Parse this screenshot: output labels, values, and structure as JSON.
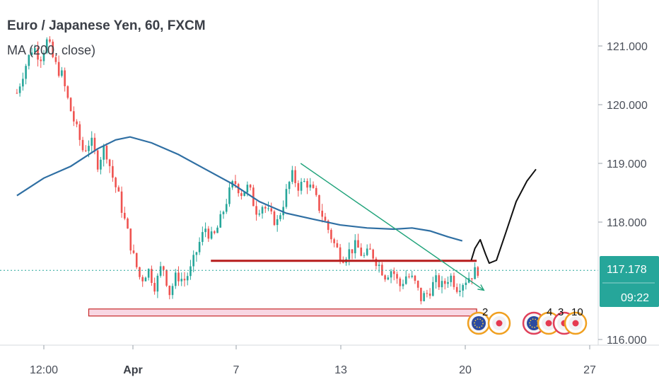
{
  "header": {
    "title": "Euro / Japanese Yen, 60, FXCM",
    "indicator": "MA (200, close)"
  },
  "price_axis": {
    "ticks": [
      "121.000",
      "120.000",
      "119.000",
      "118.000",
      "116.000"
    ],
    "current_price": "117.178",
    "countdown": "09:22"
  },
  "time_axis": {
    "ticks": [
      "12:00",
      "Apr",
      "7",
      "13",
      "20",
      "27"
    ]
  },
  "event_badges": [
    "2",
    "4",
    "3",
    "10"
  ],
  "colors": {
    "bull": "#26a69a",
    "bear": "#ef5350",
    "ma": "#2f6fa3",
    "support_zone_fill": "#f8d7e3",
    "support_zone_stroke": "#c62828",
    "resistance_line": "#b71c1c",
    "trendline": "#1fa37a",
    "projection": "#111111",
    "price_label_bg": "#26a69a"
  },
  "chart_data": {
    "type": "candlestick",
    "symbol": "EURJPY",
    "timeframe": "60",
    "y_range": [
      115.8,
      121.5
    ],
    "x_range_days": [
      "Mar 26",
      "Apr 28"
    ],
    "x_ticks": [
      {
        "label": "12:00",
        "day": 1.5
      },
      {
        "label": "Apr",
        "day": 6.0
      },
      {
        "label": "7",
        "day": 12.0
      },
      {
        "label": "13",
        "day": 18.0
      },
      {
        "label": "20",
        "day": 25.0
      },
      {
        "label": "27",
        "day": 32.0
      }
    ],
    "y_ticks": [
      121.0,
      120.0,
      119.0,
      118.0,
      116.0
    ],
    "last_price": 117.178,
    "path_points": [
      [
        0.0,
        120.2
      ],
      [
        0.4,
        120.6
      ],
      [
        0.9,
        121.0
      ],
      [
        1.3,
        120.8
      ],
      [
        1.7,
        121.1
      ],
      [
        2.1,
        120.7
      ],
      [
        2.5,
        120.5
      ],
      [
        2.9,
        120.0
      ],
      [
        3.3,
        119.6
      ],
      [
        3.7,
        119.2
      ],
      [
        4.1,
        119.4
      ],
      [
        4.5,
        119.0
      ],
      [
        4.9,
        119.3
      ],
      [
        5.3,
        118.8
      ],
      [
        5.7,
        118.4
      ],
      [
        6.1,
        117.9
      ],
      [
        6.5,
        117.4
      ],
      [
        6.9,
        117.0
      ],
      [
        7.3,
        117.2
      ],
      [
        7.7,
        116.9
      ],
      [
        8.1,
        117.3
      ],
      [
        8.5,
        116.8
      ],
      [
        8.9,
        117.1
      ],
      [
        9.3,
        117.0
      ],
      [
        9.7,
        117.2
      ],
      [
        10.1,
        117.6
      ],
      [
        10.5,
        117.9
      ],
      [
        10.9,
        117.7
      ],
      [
        11.3,
        118.0
      ],
      [
        11.7,
        118.4
      ],
      [
        12.1,
        118.7
      ],
      [
        12.5,
        118.5
      ],
      [
        12.9,
        118.6
      ],
      [
        13.3,
        118.2
      ],
      [
        13.7,
        118.3
      ],
      [
        14.1,
        118.1
      ],
      [
        14.5,
        118.0
      ],
      [
        14.9,
        118.4
      ],
      [
        15.3,
        118.8
      ],
      [
        15.7,
        118.6
      ],
      [
        16.1,
        118.7
      ],
      [
        16.5,
        118.5
      ],
      [
        16.9,
        118.2
      ],
      [
        17.3,
        117.9
      ],
      [
        17.7,
        117.6
      ],
      [
        18.1,
        117.4
      ],
      [
        18.5,
        117.5
      ],
      [
        18.9,
        117.6
      ],
      [
        19.3,
        117.4
      ],
      [
        19.7,
        117.5
      ],
      [
        20.1,
        117.3
      ],
      [
        20.5,
        117.1
      ],
      [
        20.9,
        117.2
      ],
      [
        21.3,
        116.9
      ],
      [
        21.7,
        117.1
      ],
      [
        22.1,
        117.0
      ],
      [
        22.5,
        116.7
      ],
      [
        22.9,
        116.8
      ],
      [
        23.3,
        117.0
      ],
      [
        23.7,
        116.9
      ],
      [
        24.1,
        117.1
      ],
      [
        24.5,
        116.9
      ],
      [
        24.9,
        117.0
      ],
      [
        25.3,
        117.1
      ],
      [
        25.7,
        117.2
      ]
    ],
    "moving_average": {
      "name": "MA (200, close)",
      "points": [
        [
          0.0,
          118.45
        ],
        [
          1.5,
          118.75
        ],
        [
          3.0,
          118.95
        ],
        [
          4.5,
          119.25
        ],
        [
          5.5,
          119.4
        ],
        [
          6.3,
          119.45
        ],
        [
          7.5,
          119.35
        ],
        [
          9.0,
          119.15
        ],
        [
          10.5,
          118.9
        ],
        [
          12.0,
          118.65
        ],
        [
          13.5,
          118.35
        ],
        [
          15.0,
          118.15
        ],
        [
          16.5,
          118.05
        ],
        [
          18.0,
          117.95
        ],
        [
          19.5,
          117.9
        ],
        [
          21.0,
          117.88
        ],
        [
          22.0,
          117.9
        ],
        [
          23.0,
          117.85
        ],
        [
          24.0,
          117.75
        ],
        [
          24.8,
          117.68
        ]
      ]
    },
    "drawings": {
      "support_zone": {
        "from_day": 4.0,
        "to_day": 25.6,
        "low": 116.4,
        "high": 116.52
      },
      "resistance_line": {
        "from_day": 10.8,
        "to_day": 25.6,
        "price": 117.34
      },
      "trendline": {
        "from": [
          15.8,
          119.0
        ],
        "to": [
          26.0,
          116.84
        ]
      },
      "projection_path": [
        [
          25.3,
          117.35
        ],
        [
          25.5,
          117.55
        ],
        [
          25.8,
          117.7
        ],
        [
          26.1,
          117.45
        ],
        [
          26.3,
          117.3
        ],
        [
          26.7,
          117.35
        ],
        [
          27.2,
          117.8
        ],
        [
          27.8,
          118.35
        ],
        [
          28.4,
          118.7
        ],
        [
          28.9,
          118.9
        ]
      ]
    }
  }
}
